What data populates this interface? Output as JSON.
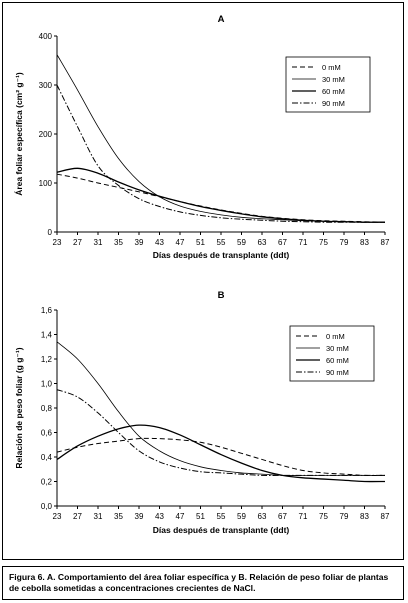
{
  "caption": "Figura 6.  A. Comportamiento del área foliar específica y B. Relación de peso foliar de plantas de cebolla sometidas a concentraciones crecientes de NaCl.",
  "legend_entries": [
    "0 mM",
    "30 mM",
    "60 mM",
    "90 mM"
  ],
  "chart_data": [
    {
      "type": "line",
      "title": "A",
      "xlabel": "Días después de transplante (ddt)",
      "ylabel": "Área foliar específica (cm² g⁻¹)",
      "xlim": [
        23,
        87
      ],
      "ylim": [
        0,
        400
      ],
      "x_ticks": [
        "23",
        "27",
        "31",
        "35",
        "39",
        "43",
        "47",
        "51",
        "55",
        "59",
        "63",
        "67",
        "71",
        "75",
        "79",
        "83",
        "87"
      ],
      "y_ticks": [
        "0",
        "100",
        "200",
        "300",
        "400"
      ],
      "grid": false,
      "legend_position": "top-right",
      "series": [
        {
          "name": "0 mM",
          "dash": "dash",
          "x": [
            23,
            27,
            31,
            35,
            39,
            43,
            47,
            51,
            55,
            59,
            63,
            67,
            71,
            75,
            79,
            83,
            87
          ],
          "y": [
            118,
            110,
            100,
            91,
            82,
            72,
            62,
            53,
            45,
            38,
            32,
            28,
            25,
            23,
            22,
            21,
            20
          ]
        },
        {
          "name": "30 mM",
          "dash": "solid-thin",
          "x": [
            23,
            27,
            31,
            35,
            39,
            43,
            47,
            51,
            55,
            59,
            63,
            67,
            71,
            75,
            79,
            83,
            87
          ],
          "y": [
            362,
            290,
            215,
            150,
            103,
            72,
            53,
            42,
            35,
            30,
            27,
            25,
            23,
            22,
            21,
            20,
            20
          ]
        },
        {
          "name": "60 mM",
          "dash": "solid",
          "x": [
            23,
            27,
            31,
            35,
            39,
            43,
            47,
            51,
            55,
            59,
            63,
            67,
            71,
            75,
            79,
            83,
            87
          ],
          "y": [
            122,
            130,
            120,
            102,
            86,
            73,
            62,
            52,
            44,
            37,
            31,
            27,
            24,
            22,
            21,
            20,
            20
          ]
        },
        {
          "name": "90 mM",
          "dash": "dashdot",
          "x": [
            23,
            27,
            31,
            35,
            39,
            43,
            47,
            51,
            55,
            59,
            63,
            67,
            71,
            75,
            79,
            83,
            87
          ],
          "y": [
            300,
            215,
            135,
            95,
            68,
            52,
            41,
            34,
            29,
            26,
            24,
            22,
            21,
            20,
            20,
            20,
            20
          ]
        }
      ]
    },
    {
      "type": "line",
      "title": "B",
      "xlabel": "Días después de transplante (ddt)",
      "ylabel": "Relación de peso foliar (g g⁻¹)",
      "xlim": [
        23,
        87
      ],
      "ylim": [
        0,
        1.6
      ],
      "x_ticks": [
        "23",
        "27",
        "31",
        "35",
        "39",
        "43",
        "47",
        "51",
        "55",
        "59",
        "63",
        "67",
        "71",
        "75",
        "79",
        "83",
        "87"
      ],
      "y_ticks": [
        "0,0",
        "0,2",
        "0,4",
        "0,6",
        "0,8",
        "1,0",
        "1,2",
        "1,4",
        "1,6"
      ],
      "grid": false,
      "legend_position": "top-right",
      "series": [
        {
          "name": "0 mM",
          "dash": "dash",
          "x": [
            23,
            27,
            31,
            35,
            39,
            43,
            47,
            51,
            55,
            59,
            63,
            67,
            71,
            75,
            79,
            83,
            87
          ],
          "y": [
            0.44,
            0.48,
            0.51,
            0.53,
            0.55,
            0.55,
            0.54,
            0.52,
            0.48,
            0.43,
            0.38,
            0.33,
            0.29,
            0.27,
            0.26,
            0.25,
            0.25
          ]
        },
        {
          "name": "30 mM",
          "dash": "solid-thin",
          "x": [
            23,
            27,
            31,
            35,
            39,
            43,
            47,
            51,
            55,
            59,
            63,
            67,
            71,
            75,
            79,
            83,
            87
          ],
          "y": [
            1.34,
            1.2,
            1.0,
            0.77,
            0.57,
            0.45,
            0.37,
            0.32,
            0.29,
            0.27,
            0.26,
            0.25,
            0.25,
            0.25,
            0.25,
            0.25,
            0.25
          ]
        },
        {
          "name": "60 mM",
          "dash": "solid",
          "x": [
            23,
            27,
            31,
            35,
            39,
            43,
            47,
            51,
            55,
            59,
            63,
            67,
            71,
            75,
            79,
            83,
            87
          ],
          "y": [
            0.38,
            0.49,
            0.57,
            0.63,
            0.66,
            0.64,
            0.58,
            0.5,
            0.42,
            0.35,
            0.29,
            0.25,
            0.23,
            0.22,
            0.21,
            0.2,
            0.2
          ]
        },
        {
          "name": "90 mM",
          "dash": "dashdot",
          "x": [
            23,
            27,
            31,
            35,
            39,
            43,
            47,
            51,
            55,
            59,
            63,
            67,
            71,
            75,
            79,
            83,
            87
          ],
          "y": [
            0.95,
            0.89,
            0.76,
            0.6,
            0.45,
            0.36,
            0.31,
            0.28,
            0.27,
            0.26,
            0.25,
            0.25,
            0.25,
            0.25,
            0.25,
            0.25,
            0.25
          ]
        }
      ]
    }
  ]
}
